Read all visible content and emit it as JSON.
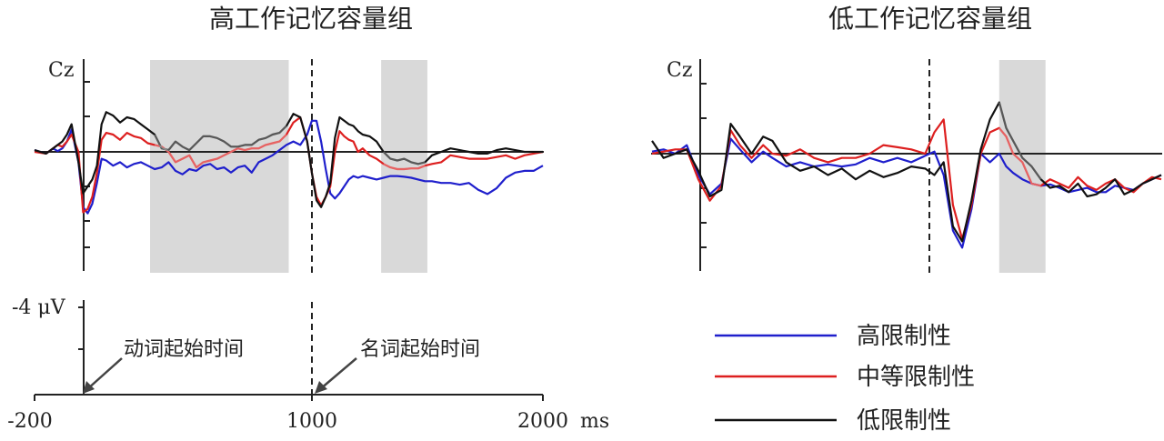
{
  "chart_data": [
    {
      "type": "line",
      "title": "高工作记忆容量组",
      "channel_label": "Cz",
      "x_range": [
        -200,
        2000
      ],
      "shaded_windows": [
        [
          300,
          900
        ],
        [
          1300,
          1500
        ]
      ],
      "onset_marker": 1000,
      "series": [
        {
          "name": "高限制性",
          "color": "#1f1fcc",
          "x": [
            -200,
            -150,
            -120,
            -100,
            -80,
            -60,
            -40,
            -10,
            10,
            30,
            50,
            70,
            90,
            110,
            140,
            170,
            200,
            230,
            260,
            290,
            320,
            350,
            380,
            410,
            440,
            470,
            500,
            530,
            560,
            590,
            620,
            650,
            680,
            710,
            740,
            770,
            800,
            830,
            860,
            890,
            920,
            950,
            980,
            1000,
            1020,
            1040,
            1060,
            1080,
            1100,
            1120,
            1140,
            1160,
            1180,
            1200,
            1220,
            1250,
            1280,
            1310,
            1340,
            1370,
            1400,
            1430,
            1460,
            1490,
            1520,
            1560,
            1600,
            1640,
            1680,
            1720,
            1760,
            1800,
            1840,
            1880,
            1920,
            1960,
            2000
          ],
          "y": [
            0.05,
            -0.05,
            0.1,
            0.02,
            0.1,
            0.3,
            0.65,
            -0.3,
            -1.6,
            -1.78,
            -1.5,
            -0.9,
            -0.2,
            -0.25,
            -0.4,
            -0.3,
            -0.45,
            -0.35,
            -0.3,
            -0.4,
            -0.5,
            -0.45,
            -0.3,
            -0.55,
            -0.65,
            -0.5,
            -0.55,
            -0.4,
            -0.35,
            -0.5,
            -0.45,
            -0.6,
            -0.45,
            -0.4,
            -0.6,
            -0.3,
            -0.2,
            -0.1,
            0.05,
            0.2,
            0.3,
            0.2,
            0.5,
            0.9,
            0.9,
            0.3,
            -0.5,
            -1.2,
            -1.35,
            -1.2,
            -1.0,
            -0.8,
            -0.7,
            -0.75,
            -0.7,
            -0.75,
            -0.8,
            -0.75,
            -0.7,
            -0.7,
            -0.72,
            -0.75,
            -0.8,
            -0.85,
            -0.85,
            -0.9,
            -0.9,
            -0.95,
            -0.9,
            -1.1,
            -1.22,
            -1.05,
            -0.75,
            -0.6,
            -0.55,
            -0.55,
            -0.4
          ]
        },
        {
          "name": "中等限制性",
          "color": "#dd1f1f",
          "x": [
            -200,
            -150,
            -120,
            -100,
            -80,
            -60,
            -40,
            -10,
            10,
            30,
            50,
            70,
            90,
            110,
            140,
            170,
            200,
            230,
            260,
            290,
            320,
            350,
            380,
            410,
            440,
            470,
            500,
            530,
            560,
            590,
            620,
            650,
            680,
            710,
            740,
            770,
            800,
            830,
            860,
            890,
            920,
            950,
            980,
            1000,
            1020,
            1040,
            1060,
            1080,
            1100,
            1120,
            1140,
            1160,
            1180,
            1200,
            1220,
            1250,
            1280,
            1310,
            1340,
            1370,
            1400,
            1430,
            1460,
            1490,
            1520,
            1560,
            1600,
            1640,
            1680,
            1720,
            1760,
            1800,
            1840,
            1880,
            1920,
            1960,
            2000
          ],
          "y": [
            0.0,
            -0.05,
            0.1,
            0.2,
            0.15,
            0.3,
            0.5,
            0.0,
            -1.75,
            -1.65,
            -1.3,
            -0.6,
            0.35,
            0.55,
            0.5,
            0.35,
            0.55,
            0.45,
            0.4,
            0.25,
            0.2,
            0.15,
            0.0,
            -0.3,
            -0.2,
            -0.1,
            -0.45,
            -0.3,
            -0.25,
            -0.2,
            -0.1,
            0.0,
            0.1,
            0.05,
            0.1,
            0.1,
            0.2,
            0.25,
            0.3,
            0.5,
            0.85,
            1.0,
            0.3,
            -0.6,
            -1.3,
            -1.55,
            -1.3,
            -1.0,
            0.0,
            0.6,
            0.45,
            0.35,
            0.3,
            0.0,
            0.1,
            -0.1,
            -0.2,
            -0.35,
            -0.45,
            -0.5,
            -0.5,
            -0.48,
            -0.48,
            -0.4,
            -0.35,
            -0.3,
            -0.1,
            -0.15,
            -0.2,
            -0.2,
            -0.2,
            -0.15,
            -0.1,
            -0.2,
            -0.1,
            -0.05,
            0.0
          ]
        },
        {
          "name": "低限制性",
          "color": "#111111",
          "x": [
            -200,
            -150,
            -120,
            -100,
            -80,
            -60,
            -40,
            -10,
            10,
            30,
            50,
            70,
            90,
            110,
            140,
            170,
            200,
            230,
            260,
            290,
            320,
            350,
            380,
            410,
            440,
            470,
            500,
            530,
            560,
            590,
            620,
            650,
            680,
            710,
            740,
            770,
            800,
            830,
            860,
            890,
            920,
            950,
            980,
            1000,
            1020,
            1040,
            1060,
            1080,
            1100,
            1120,
            1140,
            1160,
            1180,
            1200,
            1220,
            1250,
            1280,
            1310,
            1340,
            1370,
            1400,
            1430,
            1460,
            1490,
            1520,
            1560,
            1600,
            1640,
            1680,
            1720,
            1760,
            1800,
            1840,
            1880,
            1920,
            1960,
            2000
          ],
          "y": [
            0.05,
            -0.05,
            0.1,
            0.2,
            0.3,
            0.5,
            0.8,
            -0.3,
            -1.2,
            -1.0,
            -0.8,
            -0.4,
            0.8,
            1.15,
            1.05,
            0.85,
            1.0,
            0.95,
            0.8,
            0.65,
            0.5,
            0.1,
            0.05,
            0.3,
            0.15,
            0.05,
            0.25,
            0.45,
            0.45,
            0.4,
            0.3,
            0.15,
            0.15,
            0.2,
            0.2,
            0.35,
            0.4,
            0.5,
            0.55,
            0.75,
            1.1,
            1.0,
            0.3,
            -0.6,
            -1.4,
            -1.6,
            -1.3,
            -0.9,
            0.4,
            1.0,
            0.9,
            0.8,
            0.75,
            0.6,
            0.5,
            0.45,
            0.3,
            0.0,
            -0.2,
            -0.25,
            -0.2,
            -0.3,
            -0.35,
            -0.3,
            -0.1,
            0.0,
            0.1,
            0.05,
            0.0,
            -0.05,
            -0.05,
            0.05,
            0.1,
            0.05,
            0.0,
            0.0,
            0.0
          ]
        }
      ]
    },
    {
      "type": "line",
      "title": "低工作记忆容量组",
      "channel_label": "Cz",
      "x_range": [
        -200,
        2000
      ],
      "shaded_windows": [
        [
          1300,
          1500
        ]
      ],
      "onset_marker": 1000,
      "series": [
        {
          "name": "高限制性",
          "color": "#1f1fcc",
          "x": [
            -200,
            -150,
            -100,
            -50,
            0,
            50,
            100,
            140,
            180,
            230,
            280,
            320,
            380,
            440,
            500,
            560,
            620,
            680,
            740,
            800,
            860,
            920,
            980,
            1020,
            1060,
            1100,
            1140,
            1180,
            1220,
            1260,
            1300,
            1330,
            1360,
            1400,
            1440,
            1480,
            1520,
            1560,
            1600,
            1640,
            1680,
            1720,
            1760,
            1800,
            1840,
            1880,
            1920,
            1960,
            2000
          ],
          "y": [
            0.05,
            0.1,
            0.0,
            0.2,
            -0.5,
            -0.95,
            -0.7,
            0.35,
            0.1,
            -0.2,
            0.05,
            -0.1,
            -0.3,
            -0.2,
            -0.3,
            -0.25,
            -0.3,
            -0.25,
            -0.1,
            -0.2,
            -0.1,
            -0.2,
            -0.05,
            0.05,
            -0.5,
            -1.8,
            -2.2,
            -1.3,
            0.0,
            -0.2,
            0.0,
            -0.3,
            -0.45,
            -0.6,
            -0.7,
            -0.75,
            -0.72,
            -0.8,
            -0.9,
            -0.85,
            -0.8,
            -0.9,
            -0.9,
            -0.75,
            -0.8,
            -0.85,
            -0.7,
            -0.6,
            -0.5
          ]
        },
        {
          "name": "中等限制性",
          "color": "#dd1f1f",
          "x": [
            -200,
            -150,
            -100,
            -50,
            0,
            50,
            100,
            140,
            180,
            230,
            280,
            320,
            380,
            440,
            500,
            560,
            620,
            680,
            740,
            800,
            860,
            920,
            980,
            1020,
            1060,
            1100,
            1140,
            1180,
            1220,
            1260,
            1300,
            1330,
            1360,
            1400,
            1440,
            1480,
            1520,
            1560,
            1600,
            1640,
            1680,
            1720,
            1760,
            1800,
            1840,
            1880,
            1920,
            1960,
            2000
          ],
          "y": [
            0.0,
            0.05,
            0.1,
            0.1,
            -0.6,
            -1.1,
            -0.75,
            0.55,
            0.2,
            -0.1,
            0.2,
            0.0,
            -0.05,
            0.1,
            -0.1,
            -0.2,
            -0.1,
            -0.1,
            0.0,
            0.2,
            0.15,
            0.1,
            0.0,
            0.5,
            0.8,
            -1.2,
            -2.0,
            -1.2,
            0.0,
            0.5,
            0.6,
            0.4,
            0.0,
            -0.2,
            -0.7,
            -0.75,
            -0.6,
            -0.7,
            -0.8,
            -0.55,
            -0.75,
            -0.85,
            -0.7,
            -0.6,
            -0.8,
            -0.9,
            -0.7,
            -0.55,
            -0.6
          ]
        },
        {
          "name": "低限制性",
          "color": "#111111",
          "x": [
            -200,
            -150,
            -100,
            -50,
            0,
            50,
            100,
            140,
            180,
            230,
            280,
            320,
            380,
            440,
            500,
            560,
            620,
            680,
            740,
            800,
            860,
            920,
            980,
            1020,
            1060,
            1100,
            1140,
            1180,
            1220,
            1260,
            1300,
            1330,
            1360,
            1400,
            1440,
            1480,
            1520,
            1560,
            1600,
            1640,
            1680,
            1720,
            1760,
            1800,
            1840,
            1880,
            1920,
            1960,
            2000
          ],
          "y": [
            0.3,
            -0.1,
            0.0,
            0.1,
            -0.4,
            -1.0,
            -0.85,
            0.7,
            0.4,
            0.0,
            0.4,
            0.3,
            -0.2,
            -0.4,
            -0.3,
            -0.5,
            -0.35,
            -0.6,
            -0.4,
            -0.55,
            -0.45,
            -0.3,
            -0.35,
            -0.5,
            -0.2,
            -1.7,
            -2.05,
            -1.1,
            0.1,
            0.8,
            1.2,
            0.6,
            0.3,
            -0.1,
            -0.3,
            -0.6,
            -0.8,
            -0.75,
            -0.9,
            -0.7,
            -1.0,
            -0.95,
            -0.8,
            -0.6,
            -0.95,
            -0.85,
            -0.7,
            -0.6,
            -0.5
          ]
        }
      ]
    }
  ],
  "scale": {
    "label": "-4 μV",
    "x_ticks": [
      "-200",
      "1000",
      "2000"
    ],
    "x_unit": "ms"
  },
  "annotations": {
    "verb_onset": "动词起始时间",
    "noun_onset": "名词起始时间"
  },
  "legend": {
    "items": [
      {
        "label": "高限制性",
        "color": "#1f1fcc"
      },
      {
        "label": "中等限制性",
        "color": "#dd1f1f"
      },
      {
        "label": "低限制性",
        "color": "#111111"
      }
    ]
  },
  "colors": {
    "shade": "#d9d9d9",
    "axis": "#222222"
  }
}
